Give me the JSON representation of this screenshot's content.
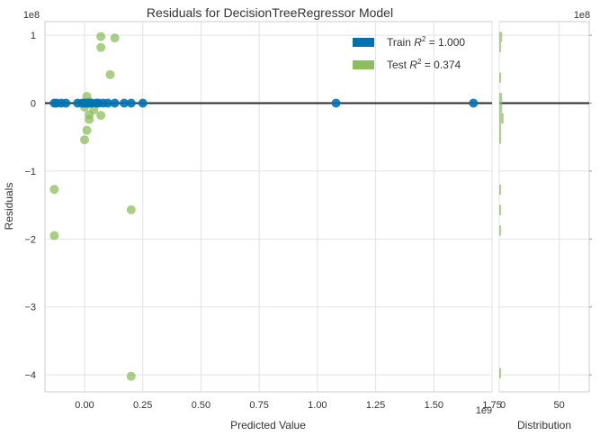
{
  "chart_data": {
    "type": "scatter",
    "title": "Residuals for DecisionTreeRegressor Model",
    "xlabel": "Predicted Value",
    "ylabel": "Residuals",
    "x_exponent_label": "1e9",
    "y_exponent_label": "1e8",
    "xlim": [
      -0.17,
      1.75
    ],
    "ylim": [
      -4.25,
      1.2
    ],
    "x_scale": 1000000000,
    "y_scale": 100000000,
    "x_ticks": [
      0.0,
      0.25,
      0.5,
      0.75,
      1.0,
      1.25,
      1.5,
      1.75
    ],
    "x_tick_labels": [
      "0.00",
      "0.25",
      "0.50",
      "0.75",
      "1.00",
      "1.25",
      "1.50",
      "1.75"
    ],
    "y_ticks": [
      1,
      0,
      -1,
      -2,
      -3,
      -4
    ],
    "y_tick_labels": [
      "1",
      "0",
      "−1",
      "−2",
      "−3",
      "−4"
    ],
    "grid": true,
    "legend_position": "top-right",
    "series": [
      {
        "name": "Train R² = 1.000",
        "legend_base": "Train ",
        "legend_value": " = 1.000",
        "color": "#0072b2",
        "points": [
          [
            -0.13,
            0.0
          ],
          [
            -0.12,
            0.0
          ],
          [
            -0.1,
            0.0
          ],
          [
            -0.08,
            0.0
          ],
          [
            -0.03,
            0.0
          ],
          [
            -0.01,
            0.0
          ],
          [
            0.0,
            0.0
          ],
          [
            0.01,
            0.0
          ],
          [
            0.02,
            0.0
          ],
          [
            0.03,
            0.0
          ],
          [
            0.05,
            0.0
          ],
          [
            0.06,
            0.0
          ],
          [
            0.08,
            0.0
          ],
          [
            0.1,
            0.0
          ],
          [
            0.13,
            0.0
          ],
          [
            0.17,
            0.0
          ],
          [
            0.2,
            0.0
          ],
          [
            0.25,
            0.0
          ],
          [
            1.08,
            0.0
          ],
          [
            1.67,
            0.0
          ]
        ]
      },
      {
        "name": "Test R² = 0.374",
        "legend_base": "Test ",
        "legend_value": " = 0.374",
        "color": "#8cbd5e",
        "points": [
          [
            0.07,
            0.98
          ],
          [
            0.13,
            0.96
          ],
          [
            0.07,
            0.82
          ],
          [
            0.11,
            0.42
          ],
          [
            0.01,
            0.1
          ],
          [
            0.02,
            0.02
          ],
          [
            0.0,
            -0.06
          ],
          [
            0.04,
            -0.1
          ],
          [
            0.02,
            -0.17
          ],
          [
            0.07,
            -0.18
          ],
          [
            0.02,
            -0.24
          ],
          [
            0.01,
            -0.4
          ],
          [
            0.0,
            -0.54
          ],
          [
            -0.13,
            -1.27
          ],
          [
            0.2,
            -1.57
          ],
          [
            -0.13,
            -1.95
          ],
          [
            0.2,
            -4.02
          ]
        ]
      }
    ],
    "distribution": {
      "xlabel": "Distribution",
      "x_tick_labels": [
        "0",
        "50"
      ],
      "xlim": [
        0,
        75
      ],
      "y_exponent_label": "1e8"
    }
  }
}
